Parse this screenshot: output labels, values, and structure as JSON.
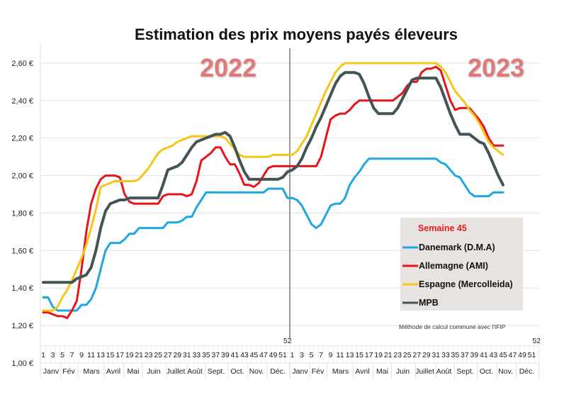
{
  "chart_data": {
    "type": "line",
    "title": "Estimation des prix moyens payés éleveurs",
    "xlabel": "",
    "ylabel": "",
    "ylim": [
      1.0,
      2.7
    ],
    "y_ticks": [
      "1,00 €",
      "1,20 €",
      "1,40 €",
      "1,60 €",
      "1,80 €",
      "2,00 €",
      "2,20 €",
      "2,40 €",
      "2,60 €"
    ],
    "grid": "horizontal",
    "years": [
      "2022",
      "2023"
    ],
    "week_ticks": [
      "1",
      "3",
      "5",
      "7",
      "9",
      "11",
      "13",
      "15",
      "17",
      "19",
      "21",
      "23",
      "25",
      "27",
      "29",
      "31",
      "33",
      "35",
      "37",
      "39",
      "41",
      "43",
      "45",
      "47",
      "49",
      "51",
      "52"
    ],
    "months": [
      "Janv",
      "Fév",
      "Mars",
      "Avril",
      "Mai",
      "Juin",
      "Juillet",
      "Août",
      "Sept.",
      "Oct.",
      "Nov.",
      "Déc."
    ],
    "legend": {
      "title": "Semaine 45",
      "position": "bottom-right"
    },
    "note": "Méthode de calcul commune avec l'IFIP",
    "series": [
      {
        "name": "Danemark (D.M.A)",
        "color": "#1ea7e1",
        "2022": [
          1.35,
          1.35,
          1.3,
          1.28,
          1.28,
          1.28,
          1.28,
          1.28,
          1.31,
          1.31,
          1.34,
          1.4,
          1.5,
          1.6,
          1.64,
          1.64,
          1.64,
          1.66,
          1.69,
          1.69,
          1.72,
          1.72,
          1.72,
          1.72,
          1.72,
          1.72,
          1.75,
          1.75,
          1.75,
          1.76,
          1.78,
          1.78,
          1.83,
          1.87,
          1.91,
          1.91,
          1.91,
          1.91,
          1.91,
          1.91,
          1.91,
          1.91,
          1.91,
          1.91,
          1.91,
          1.91,
          1.91,
          1.93,
          1.93,
          1.93,
          1.93,
          1.88
        ],
        "2023": [
          1.88,
          1.87,
          1.84,
          1.79,
          1.74,
          1.72,
          1.74,
          1.79,
          1.84,
          1.85,
          1.85,
          1.88,
          1.95,
          1.99,
          2.02,
          2.06,
          2.09,
          2.09,
          2.09,
          2.09,
          2.09,
          2.09,
          2.09,
          2.09,
          2.09,
          2.09,
          2.09,
          2.09,
          2.09,
          2.09,
          2.09,
          2.07,
          2.06,
          2.03,
          2.0,
          1.99,
          1.95,
          1.91,
          1.89,
          1.89,
          1.89,
          1.89,
          1.91,
          1.91,
          1.91
        ]
      },
      {
        "name": "Allemagne (AMI)",
        "color": "#e8141b",
        "2022": [
          1.27,
          1.27,
          1.26,
          1.25,
          1.25,
          1.24,
          1.28,
          1.33,
          1.5,
          1.7,
          1.85,
          1.93,
          1.98,
          2.0,
          2.0,
          2.0,
          1.99,
          1.9,
          1.86,
          1.85,
          1.85,
          1.85,
          1.85,
          1.85,
          1.85,
          1.89,
          1.9,
          1.9,
          1.9,
          1.9,
          1.89,
          1.9,
          1.97,
          2.08,
          2.1,
          2.12,
          2.15,
          2.15,
          2.1,
          2.06,
          2.06,
          2.01,
          1.95,
          1.95,
          1.94,
          1.96,
          2.0,
          2.04,
          2.05,
          2.05,
          2.05,
          2.05
        ],
        "2023": [
          2.05,
          2.05,
          2.05,
          2.05,
          2.05,
          2.05,
          2.1,
          2.2,
          2.3,
          2.32,
          2.33,
          2.33,
          2.35,
          2.38,
          2.4,
          2.4,
          2.4,
          2.4,
          2.4,
          2.4,
          2.4,
          2.4,
          2.42,
          2.44,
          2.48,
          2.5,
          2.5,
          2.55,
          2.57,
          2.57,
          2.58,
          2.56,
          2.48,
          2.4,
          2.35,
          2.36,
          2.36,
          2.36,
          2.33,
          2.3,
          2.26,
          2.2,
          2.16,
          2.16,
          2.16
        ]
      },
      {
        "name": "Espagne (Mercolleida)",
        "color": "#f5c518",
        "2022": [
          1.28,
          1.28,
          1.28,
          1.3,
          1.35,
          1.39,
          1.44,
          1.5,
          1.56,
          1.63,
          1.72,
          1.82,
          1.94,
          1.95,
          1.96,
          1.97,
          1.97,
          1.97,
          1.97,
          1.97,
          1.98,
          2.01,
          2.04,
          2.08,
          2.12,
          2.14,
          2.15,
          2.16,
          2.18,
          2.19,
          2.2,
          2.21,
          2.21,
          2.21,
          2.21,
          2.21,
          2.21,
          2.21,
          2.2,
          2.17,
          2.14,
          2.11,
          2.1,
          2.1,
          2.1,
          2.1,
          2.1,
          2.1,
          2.11,
          2.11,
          2.11,
          2.11
        ],
        "2023": [
          2.11,
          2.13,
          2.17,
          2.21,
          2.27,
          2.33,
          2.39,
          2.45,
          2.5,
          2.55,
          2.58,
          2.6,
          2.6,
          2.6,
          2.6,
          2.6,
          2.6,
          2.6,
          2.6,
          2.6,
          2.6,
          2.6,
          2.6,
          2.6,
          2.6,
          2.6,
          2.6,
          2.6,
          2.6,
          2.6,
          2.6,
          2.58,
          2.55,
          2.5,
          2.45,
          2.42,
          2.39,
          2.35,
          2.32,
          2.28,
          2.23,
          2.18,
          2.15,
          2.13,
          2.11
        ]
      },
      {
        "name": "MPB",
        "color": "#435457",
        "2022": [
          1.43,
          1.43,
          1.43,
          1.43,
          1.43,
          1.43,
          1.43,
          1.45,
          1.46,
          1.47,
          1.51,
          1.6,
          1.72,
          1.81,
          1.85,
          1.86,
          1.87,
          1.87,
          1.88,
          1.88,
          1.88,
          1.88,
          1.88,
          1.88,
          1.88,
          1.95,
          2.03,
          2.04,
          2.05,
          2.07,
          2.11,
          2.15,
          2.18,
          2.19,
          2.2,
          2.21,
          2.22,
          2.22,
          2.23,
          2.21,
          2.15,
          2.08,
          2.02,
          1.98,
          1.98,
          1.98,
          1.98,
          1.98,
          1.98,
          1.98,
          1.99,
          2.02
        ],
        "2023": [
          2.03,
          2.05,
          2.09,
          2.15,
          2.2,
          2.26,
          2.31,
          2.37,
          2.43,
          2.49,
          2.53,
          2.55,
          2.55,
          2.55,
          2.54,
          2.49,
          2.42,
          2.36,
          2.33,
          2.33,
          2.33,
          2.33,
          2.36,
          2.41,
          2.46,
          2.51,
          2.52,
          2.52,
          2.52,
          2.52,
          2.52,
          2.47,
          2.4,
          2.33,
          2.27,
          2.22,
          2.22,
          2.22,
          2.2,
          2.18,
          2.17,
          2.12,
          2.06,
          2.0,
          1.95
        ]
      }
    ]
  }
}
